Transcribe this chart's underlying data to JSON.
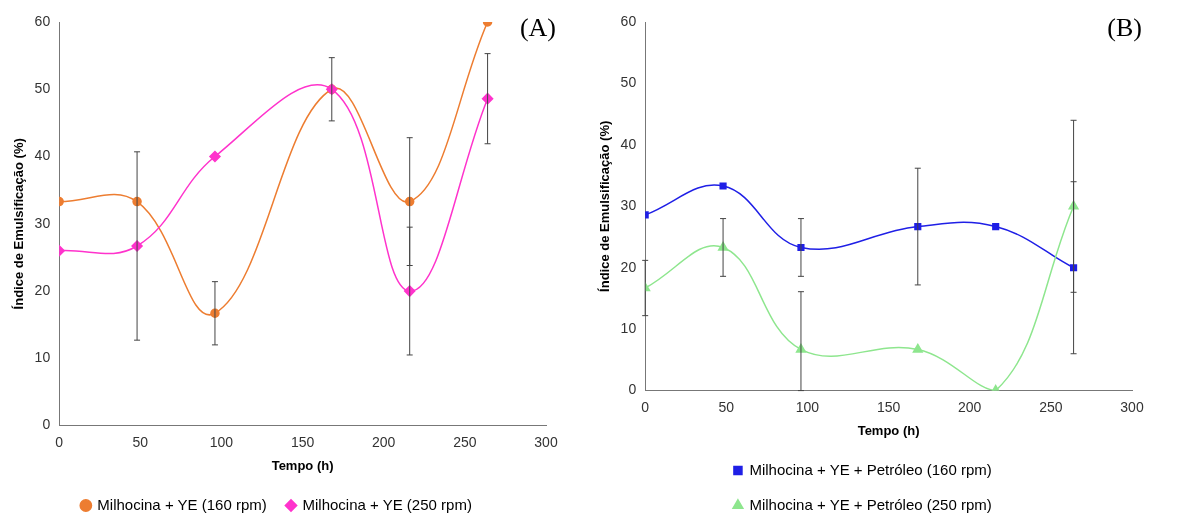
{
  "chart_data": [
    {
      "type": "line",
      "annotations": [
        "(A)"
      ],
      "xlabel": "Tempo (h)",
      "ylabel": "Índice de Emulsificação (%)",
      "x": [
        0,
        48,
        96,
        168,
        216,
        264
      ],
      "xlim": [
        0,
        300
      ],
      "xticks": [
        0,
        50,
        100,
        150,
        200,
        250,
        300
      ],
      "ylim": [
        0,
        60
      ],
      "yticks": [
        0,
        10,
        20,
        30,
        40,
        50,
        60
      ],
      "grid": false,
      "legend": "bottom",
      "series": [
        {
          "name": "Milhocina + YE (160 rpm)",
          "color": "#ed7d31",
          "marker": "circle",
          "values": [
            33.3,
            33.3,
            16.7,
            50,
            33.3,
            60
          ],
          "errors": [
            null,
            null,
            4.7,
            4.7,
            9.5,
            null
          ]
        },
        {
          "name": "Milhocina + YE (250 rpm)",
          "color": "#ff33cc",
          "marker": "diamond",
          "values": [
            26,
            26.7,
            40,
            50,
            20,
            48.6
          ],
          "errors": [
            null,
            14,
            null,
            null,
            9.5,
            6.7
          ]
        }
      ]
    },
    {
      "type": "line",
      "annotations": [
        "(B)"
      ],
      "xlabel": "Tempo (h)",
      "ylabel": "Índice de Emulsificação (%)",
      "x": [
        0,
        48,
        96,
        168,
        216,
        264
      ],
      "xlim": [
        0,
        300
      ],
      "xticks": [
        0,
        50,
        100,
        150,
        200,
        250,
        300
      ],
      "ylim": [
        0,
        60
      ],
      "yticks": [
        0,
        10,
        20,
        30,
        40,
        50,
        60
      ],
      "grid": false,
      "legend": "bottom",
      "series": [
        {
          "name": "Milhocina + YE + Petróleo (160 rpm)",
          "color": "#1f1fe6",
          "marker": "square",
          "values": [
            28.6,
            33.3,
            23.3,
            26.7,
            26.7,
            20
          ],
          "errors": [
            null,
            null,
            4.7,
            9.5,
            null,
            14
          ]
        },
        {
          "name": "Milhocina + YE + Petróleo (250 rpm)",
          "color": "#8ee68e",
          "marker": "triangle",
          "values": [
            16.7,
            23.3,
            6.7,
            6.7,
            0,
            30
          ],
          "errors": [
            4.5,
            4.7,
            [
              0,
              16.1
            ],
            null,
            null,
            14
          ]
        }
      ]
    }
  ]
}
